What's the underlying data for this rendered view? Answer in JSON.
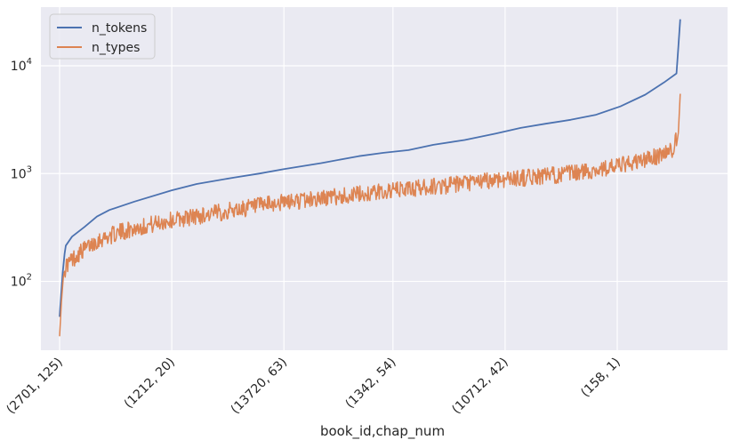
{
  "chart_data": {
    "type": "line",
    "xlabel": "book_id,chap_num",
    "ylabel": "",
    "yscale": "log",
    "ylim": [
      23,
      35000
    ],
    "x_range": [
      0,
      1000
    ],
    "grid": true,
    "legend_placement": "top-left",
    "background_color": "#eaeaf2",
    "x_ticks": [
      {
        "x": 0,
        "label": "(2701, 125)"
      },
      {
        "x": 180,
        "label": "(1212, 20)"
      },
      {
        "x": 360,
        "label": "(13720, 63)"
      },
      {
        "x": 535,
        "label": "(1342, 54)"
      },
      {
        "x": 715,
        "label": "(10712, 42)"
      },
      {
        "x": 895,
        "label": "(158, 1)"
      }
    ],
    "y_ticks": [
      {
        "value": 100,
        "base": "10",
        "exp": "2"
      },
      {
        "value": 1000,
        "base": "10",
        "exp": "3"
      },
      {
        "value": 10000,
        "base": "10",
        "exp": "4"
      }
    ],
    "series": [
      {
        "name": "n_tokens",
        "color": "#4c72b0",
        "points": [
          [
            0,
            47
          ],
          [
            2,
            70
          ],
          [
            5,
            120
          ],
          [
            8,
            180
          ],
          [
            10,
            215
          ],
          [
            20,
            260
          ],
          [
            40,
            320
          ],
          [
            60,
            400
          ],
          [
            80,
            460
          ],
          [
            120,
            550
          ],
          [
            180,
            700
          ],
          [
            220,
            800
          ],
          [
            280,
            920
          ],
          [
            320,
            1000
          ],
          [
            360,
            1100
          ],
          [
            420,
            1250
          ],
          [
            480,
            1450
          ],
          [
            520,
            1560
          ],
          [
            560,
            1650
          ],
          [
            600,
            1850
          ],
          [
            650,
            2050
          ],
          [
            700,
            2350
          ],
          [
            740,
            2650
          ],
          [
            780,
            2900
          ],
          [
            820,
            3150
          ],
          [
            860,
            3500
          ],
          [
            900,
            4200
          ],
          [
            940,
            5400
          ],
          [
            970,
            7000
          ],
          [
            990,
            8500
          ],
          [
            993,
            15000
          ],
          [
            996,
            27000
          ]
        ]
      },
      {
        "name": "n_types",
        "color": "#dd8452",
        "points": [
          [
            0,
            31
          ],
          [
            3,
            65
          ],
          [
            6,
            110
          ],
          [
            10,
            140
          ],
          [
            30,
            180
          ],
          [
            60,
            240
          ],
          [
            100,
            290
          ],
          [
            140,
            330
          ],
          [
            180,
            370
          ],
          [
            240,
            420
          ],
          [
            300,
            480
          ],
          [
            360,
            540
          ],
          [
            420,
            590
          ],
          [
            480,
            640
          ],
          [
            540,
            700
          ],
          [
            600,
            760
          ],
          [
            650,
            800
          ],
          [
            700,
            880
          ],
          [
            760,
            930
          ],
          [
            820,
            1000
          ],
          [
            870,
            1100
          ],
          [
            920,
            1250
          ],
          [
            960,
            1450
          ],
          [
            985,
            1700
          ],
          [
            993,
            2400
          ],
          [
            996,
            5500
          ]
        ]
      }
    ]
  }
}
